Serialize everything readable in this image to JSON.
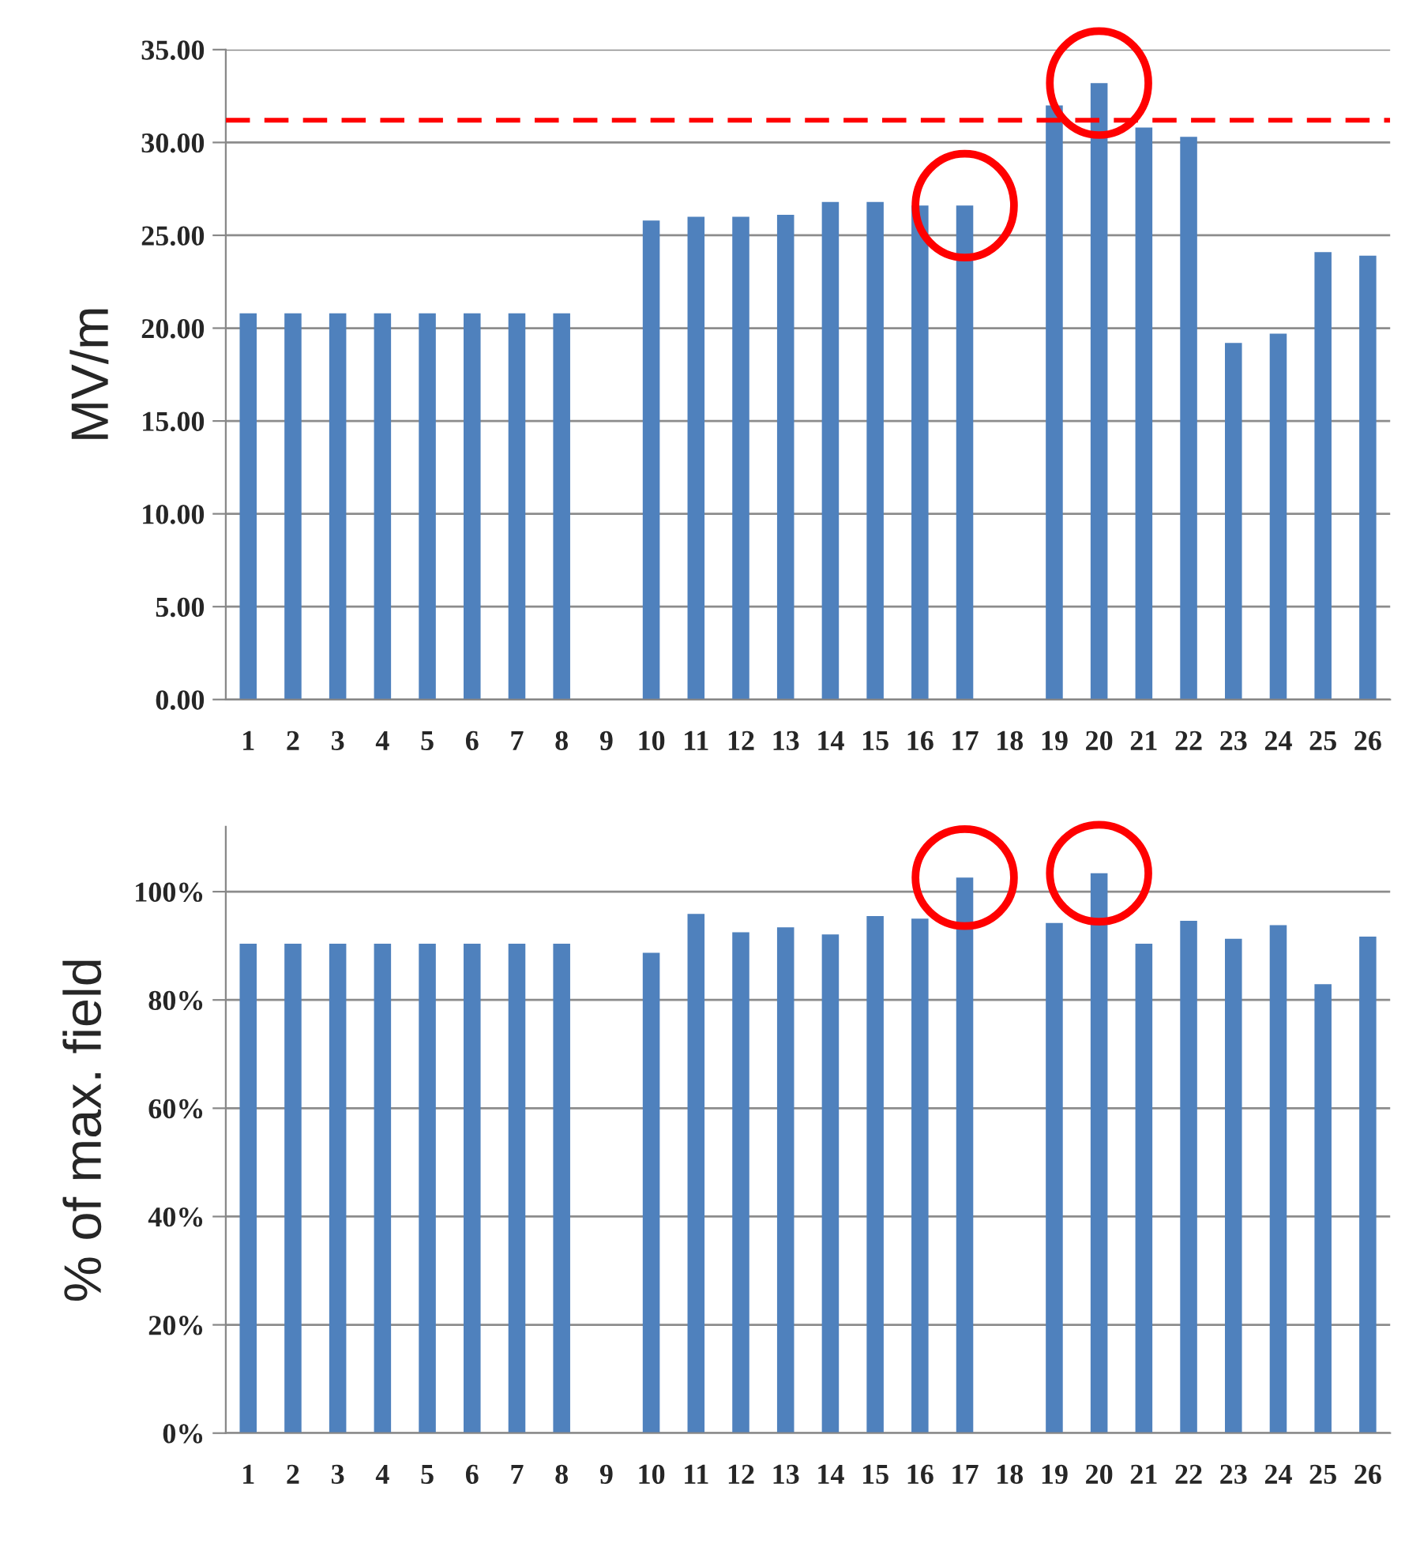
{
  "chart_data": [
    {
      "type": "bar",
      "ylabel": "MV/m",
      "categories": [
        "1",
        "2",
        "3",
        "4",
        "5",
        "6",
        "7",
        "8",
        "9",
        "10",
        "11",
        "12",
        "13",
        "14",
        "15",
        "16",
        "17",
        "18",
        "19",
        "20",
        "21",
        "22",
        "23",
        "24",
        "25",
        "26"
      ],
      "series": [
        {
          "color": "#4f81bd",
          "values": [
            20.8,
            20.8,
            20.8,
            20.8,
            20.8,
            20.8,
            20.8,
            20.8,
            null,
            25.8,
            26.0,
            26.0,
            26.1,
            26.8,
            26.8,
            26.6,
            26.6,
            null,
            32.0,
            33.2,
            30.8,
            30.3,
            19.2,
            19.7,
            24.1,
            23.9
          ]
        }
      ],
      "ylim": [
        0,
        35
      ],
      "yticks": [
        {
          "value": 0,
          "label": "0.00"
        },
        {
          "value": 5,
          "label": "5.00"
        },
        {
          "value": 10,
          "label": "10.00"
        },
        {
          "value": 15,
          "label": "15.00"
        },
        {
          "value": 20,
          "label": "20.00"
        },
        {
          "value": 25,
          "label": "25.00"
        },
        {
          "value": 30,
          "label": "30.00"
        },
        {
          "value": 35,
          "label": "35.00"
        }
      ],
      "ref_lines": [
        {
          "axis": "y",
          "value": 31.2,
          "color": "#ff0000",
          "line_style": "dashed"
        }
      ],
      "grid": "y",
      "legend": false
    },
    {
      "type": "bar",
      "ylabel": "% of max. field",
      "categories": [
        "1",
        "2",
        "3",
        "4",
        "5",
        "6",
        "7",
        "8",
        "9",
        "10",
        "11",
        "12",
        "13",
        "14",
        "15",
        "16",
        "17",
        "18",
        "19",
        "20",
        "21",
        "22",
        "23",
        "24",
        "25",
        "26"
      ],
      "series": [
        {
          "color": "#4f81bd",
          "values": [
            90.4,
            90.4,
            90.4,
            90.4,
            90.4,
            90.4,
            90.4,
            90.4,
            null,
            88.7,
            95.9,
            92.5,
            93.4,
            92.1,
            95.5,
            95.0,
            102.6,
            null,
            94.2,
            103.4,
            90.4,
            94.6,
            91.3,
            93.8,
            82.9,
            91.7
          ]
        }
      ],
      "ylim": [
        0,
        112
      ],
      "yticks": [
        {
          "value": 0,
          "label": "0%"
        },
        {
          "value": 20,
          "label": "20%"
        },
        {
          "value": 40,
          "label": "40%"
        },
        {
          "value": 60,
          "label": "60%"
        },
        {
          "value": 80,
          "label": "80%"
        },
        {
          "value": 100,
          "label": "100%"
        }
      ],
      "grid": "y",
      "legend": false
    }
  ]
}
